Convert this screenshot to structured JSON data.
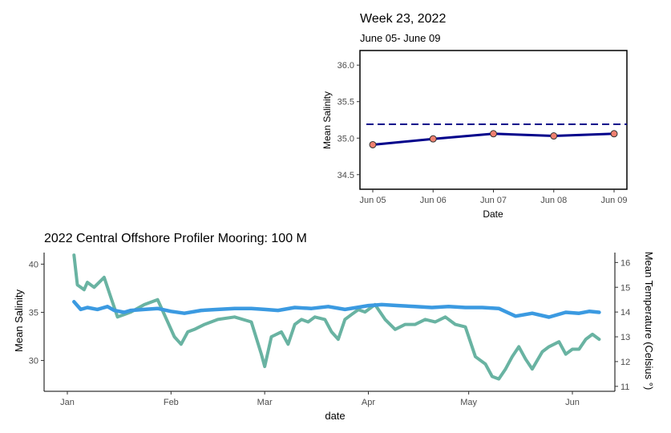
{
  "chart_data": [
    {
      "type": "line",
      "title": "Week 23, 2022",
      "subtitle": "June 05- June 09",
      "xlabel": "Date",
      "ylabel": "Mean Salinity",
      "categories": [
        "Jun 05",
        "Jun 06",
        "Jun 07",
        "Jun 08",
        "Jun 09"
      ],
      "yticks": [
        "34.5",
        "35.0",
        "35.5",
        "36.0"
      ],
      "ylim": [
        34.3,
        36.2
      ],
      "series": [
        {
          "values": [
            34.91,
            34.99,
            35.06,
            35.03,
            35.06
          ],
          "color": "#00008b",
          "marker_color": "#f08070"
        }
      ],
      "reference_line": {
        "value": 35.19,
        "color": "#00008b",
        "style": "dashed"
      }
    },
    {
      "type": "line",
      "title": "2022 Central Offshore Profiler Mooring: 100 M",
      "xlabel": "date",
      "ylabel": "Mean Salinity",
      "y2label": "Mean Temperature (Celsius °)",
      "xticks": [
        "Jan",
        "Feb",
        "Mar",
        "Apr",
        "May",
        "Jun"
      ],
      "yticks": [
        "30",
        "35",
        "40"
      ],
      "y2ticks": [
        "11",
        "12",
        "13",
        "14",
        "15",
        "16"
      ],
      "ylim": [
        26.8,
        41.2
      ],
      "y2lim": [
        10.8,
        16.4
      ],
      "series": [
        {
          "axis": "left",
          "color": "#3b9ae1",
          "x": [
            "2022-01-03",
            "2022-01-05",
            "2022-01-07",
            "2022-01-10",
            "2022-01-13",
            "2022-01-15",
            "2022-01-18",
            "2022-01-20",
            "2022-01-24",
            "2022-01-28",
            "2022-02-01",
            "2022-02-05",
            "2022-02-10",
            "2022-02-15",
            "2022-02-20",
            "2022-02-25",
            "2022-03-01",
            "2022-03-05",
            "2022-03-10",
            "2022-03-15",
            "2022-03-20",
            "2022-03-25",
            "2022-04-01",
            "2022-04-05",
            "2022-04-10",
            "2022-04-15",
            "2022-04-20",
            "2022-04-25",
            "2022-04-30",
            "2022-05-05",
            "2022-05-10",
            "2022-05-15",
            "2022-05-20",
            "2022-05-25",
            "2022-05-30",
            "2022-06-03",
            "2022-06-06",
            "2022-06-09"
          ],
          "values": [
            36.1,
            35.3,
            35.5,
            35.3,
            35.6,
            35.2,
            35.0,
            35.2,
            35.3,
            35.4,
            35.1,
            34.9,
            35.2,
            35.3,
            35.4,
            35.4,
            35.3,
            35.2,
            35.5,
            35.4,
            35.6,
            35.3,
            35.7,
            35.8,
            35.7,
            35.6,
            35.5,
            35.6,
            35.5,
            35.5,
            35.4,
            34.6,
            34.9,
            34.5,
            35.0,
            34.9,
            35.1,
            35.0
          ]
        },
        {
          "axis": "right",
          "color": "#69b3a2",
          "x": [
            "2022-01-03",
            "2022-01-04",
            "2022-01-06",
            "2022-01-07",
            "2022-01-09",
            "2022-01-12",
            "2022-01-14",
            "2022-01-16",
            "2022-01-18",
            "2022-01-20",
            "2022-01-24",
            "2022-01-28",
            "2022-01-31",
            "2022-02-02",
            "2022-02-04",
            "2022-02-06",
            "2022-02-08",
            "2022-02-11",
            "2022-02-15",
            "2022-02-20",
            "2022-02-25",
            "2022-02-28",
            "2022-03-01",
            "2022-03-03",
            "2022-03-06",
            "2022-03-08",
            "2022-03-10",
            "2022-03-12",
            "2022-03-14",
            "2022-03-16",
            "2022-03-19",
            "2022-03-21",
            "2022-03-23",
            "2022-03-25",
            "2022-03-27",
            "2022-03-29",
            "2022-03-31",
            "2022-04-03",
            "2022-04-06",
            "2022-04-09",
            "2022-04-12",
            "2022-04-15",
            "2022-04-18",
            "2022-04-21",
            "2022-04-24",
            "2022-04-27",
            "2022-04-30",
            "2022-05-03",
            "2022-05-06",
            "2022-05-08",
            "2022-05-10",
            "2022-05-12",
            "2022-05-14",
            "2022-05-16",
            "2022-05-18",
            "2022-05-20",
            "2022-05-23",
            "2022-05-25",
            "2022-05-28",
            "2022-05-30",
            "2022-06-01",
            "2022-06-03",
            "2022-06-05",
            "2022-06-07",
            "2022-06-09"
          ],
          "values": [
            16.3,
            15.1,
            14.9,
            15.2,
            15.0,
            15.4,
            14.6,
            13.8,
            13.9,
            14.0,
            14.3,
            14.5,
            13.6,
            13.0,
            12.7,
            13.2,
            13.3,
            13.5,
            13.7,
            13.8,
            13.6,
            12.3,
            11.8,
            13.0,
            13.2,
            12.7,
            13.5,
            13.7,
            13.6,
            13.8,
            13.7,
            13.2,
            12.9,
            13.7,
            13.9,
            14.1,
            14.0,
            14.3,
            13.7,
            13.3,
            13.5,
            13.5,
            13.7,
            13.6,
            13.8,
            13.5,
            13.4,
            12.2,
            11.9,
            11.4,
            11.3,
            11.7,
            12.2,
            12.6,
            12.1,
            11.7,
            12.4,
            12.6,
            12.8,
            12.3,
            12.5,
            12.5,
            12.9,
            13.1,
            12.9
          ]
        }
      ]
    }
  ]
}
